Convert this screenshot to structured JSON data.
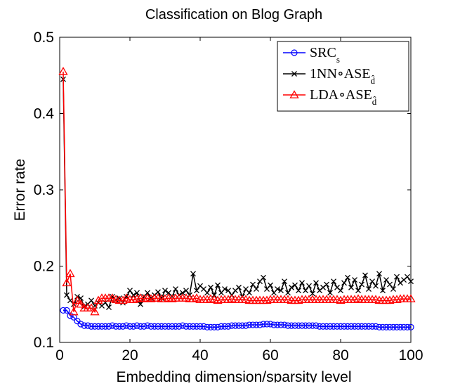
{
  "chart_data": {
    "type": "line",
    "title": "Classification on Blog Graph",
    "xlabel": "Embedding dimension/sparsity level",
    "ylabel": "Error rate",
    "xlim": [
      0,
      100
    ],
    "ylim": [
      0.1,
      0.5
    ],
    "xticks": [
      0,
      20,
      40,
      60,
      80,
      100
    ],
    "xtick_labels": [
      "0",
      "20",
      "40",
      "60",
      "80",
      "100"
    ],
    "yticks": [
      0.1,
      0.2,
      0.3,
      0.4,
      0.5
    ],
    "ytick_labels": [
      "0.1",
      "0.2",
      "0.3",
      "0.4",
      "0.5"
    ],
    "grid": false,
    "legend_position": "top-right",
    "series": [
      {
        "name": "SRC",
        "name_subscript": "s",
        "color": "#0000ff",
        "marker": "circle",
        "x": [
          1,
          2,
          3,
          4,
          5,
          6,
          7,
          8,
          9,
          10,
          11,
          12,
          13,
          14,
          15,
          16,
          17,
          18,
          19,
          20,
          21,
          22,
          23,
          24,
          25,
          26,
          27,
          28,
          29,
          30,
          31,
          32,
          33,
          34,
          35,
          36,
          37,
          38,
          39,
          40,
          41,
          42,
          43,
          44,
          45,
          46,
          47,
          48,
          49,
          50,
          51,
          52,
          53,
          54,
          55,
          56,
          57,
          58,
          59,
          60,
          61,
          62,
          63,
          64,
          65,
          66,
          67,
          68,
          69,
          70,
          71,
          72,
          73,
          74,
          75,
          76,
          77,
          78,
          79,
          80,
          81,
          82,
          83,
          84,
          85,
          86,
          87,
          88,
          89,
          90,
          91,
          92,
          93,
          94,
          95,
          96,
          97,
          98,
          99,
          100
        ],
        "y": [
          0.142,
          0.142,
          0.135,
          0.133,
          0.128,
          0.124,
          0.122,
          0.122,
          0.121,
          0.121,
          0.121,
          0.121,
          0.121,
          0.121,
          0.122,
          0.121,
          0.121,
          0.121,
          0.122,
          0.121,
          0.121,
          0.122,
          0.121,
          0.121,
          0.122,
          0.121,
          0.121,
          0.121,
          0.121,
          0.121,
          0.121,
          0.121,
          0.121,
          0.121,
          0.122,
          0.121,
          0.121,
          0.121,
          0.121,
          0.121,
          0.121,
          0.12,
          0.12,
          0.12,
          0.12,
          0.121,
          0.121,
          0.121,
          0.122,
          0.122,
          0.122,
          0.122,
          0.122,
          0.123,
          0.123,
          0.123,
          0.123,
          0.124,
          0.124,
          0.124,
          0.123,
          0.123,
          0.123,
          0.123,
          0.122,
          0.122,
          0.122,
          0.122,
          0.122,
          0.122,
          0.122,
          0.122,
          0.122,
          0.121,
          0.121,
          0.121,
          0.121,
          0.121,
          0.121,
          0.121,
          0.121,
          0.121,
          0.121,
          0.121,
          0.121,
          0.121,
          0.121,
          0.121,
          0.121,
          0.121,
          0.12,
          0.12,
          0.12,
          0.12,
          0.12,
          0.12,
          0.12,
          0.12,
          0.12,
          0.12
        ]
      },
      {
        "name": "1NN∘ASE",
        "name_subscript": "d̂",
        "color": "#000000",
        "marker": "x",
        "x": [
          1,
          2,
          3,
          4,
          5,
          6,
          7,
          8,
          9,
          10,
          11,
          12,
          13,
          14,
          15,
          16,
          17,
          18,
          19,
          20,
          21,
          22,
          23,
          24,
          25,
          26,
          27,
          28,
          29,
          30,
          31,
          32,
          33,
          34,
          35,
          36,
          37,
          38,
          39,
          40,
          41,
          42,
          43,
          44,
          45,
          46,
          47,
          48,
          49,
          50,
          51,
          52,
          53,
          54,
          55,
          56,
          57,
          58,
          59,
          60,
          61,
          62,
          63,
          64,
          65,
          66,
          67,
          68,
          69,
          70,
          71,
          72,
          73,
          74,
          75,
          76,
          77,
          78,
          79,
          80,
          81,
          82,
          83,
          84,
          85,
          86,
          87,
          88,
          89,
          90,
          91,
          92,
          93,
          94,
          95,
          96,
          97,
          98,
          99,
          100
        ],
        "y": [
          0.445,
          0.162,
          0.155,
          0.15,
          0.16,
          0.158,
          0.147,
          0.15,
          0.155,
          0.148,
          0.152,
          0.148,
          0.152,
          0.146,
          0.16,
          0.156,
          0.158,
          0.152,
          0.16,
          0.168,
          0.162,
          0.165,
          0.15,
          0.16,
          0.165,
          0.158,
          0.162,
          0.166,
          0.158,
          0.168,
          0.165,
          0.16,
          0.17,
          0.162,
          0.165,
          0.168,
          0.162,
          0.19,
          0.168,
          0.174,
          0.17,
          0.165,
          0.172,
          0.162,
          0.175,
          0.165,
          0.17,
          0.168,
          0.162,
          0.168,
          0.172,
          0.16,
          0.17,
          0.165,
          0.176,
          0.17,
          0.18,
          0.185,
          0.17,
          0.175,
          0.165,
          0.17,
          0.168,
          0.18,
          0.165,
          0.172,
          0.175,
          0.168,
          0.178,
          0.168,
          0.174,
          0.164,
          0.178,
          0.168,
          0.172,
          0.176,
          0.165,
          0.18,
          0.172,
          0.168,
          0.178,
          0.185,
          0.172,
          0.182,
          0.168,
          0.176,
          0.188,
          0.17,
          0.18,
          0.174,
          0.19,
          0.168,
          0.182,
          0.176,
          0.17,
          0.186,
          0.178,
          0.182,
          0.186,
          0.18
        ]
      },
      {
        "name": "LDA∘ASE",
        "name_subscript": "d̂",
        "color": "#ff0000",
        "marker": "triangle",
        "x": [
          1,
          2,
          3,
          4,
          5,
          6,
          7,
          8,
          9,
          10,
          11,
          12,
          13,
          14,
          15,
          16,
          17,
          18,
          19,
          20,
          21,
          22,
          23,
          24,
          25,
          26,
          27,
          28,
          29,
          30,
          31,
          32,
          33,
          34,
          35,
          36,
          37,
          38,
          39,
          40,
          41,
          42,
          43,
          44,
          45,
          46,
          47,
          48,
          49,
          50,
          51,
          52,
          53,
          54,
          55,
          56,
          57,
          58,
          59,
          60,
          61,
          62,
          63,
          64,
          65,
          66,
          67,
          68,
          69,
          70,
          71,
          72,
          73,
          74,
          75,
          76,
          77,
          78,
          79,
          80,
          81,
          82,
          83,
          84,
          85,
          86,
          87,
          88,
          89,
          90,
          91,
          92,
          93,
          94,
          95,
          96,
          97,
          98,
          99,
          100
        ],
        "y": [
          0.455,
          0.178,
          0.19,
          0.14,
          0.155,
          0.15,
          0.145,
          0.145,
          0.145,
          0.14,
          0.155,
          0.158,
          0.158,
          0.158,
          0.158,
          0.156,
          0.155,
          0.155,
          0.158,
          0.156,
          0.156,
          0.157,
          0.158,
          0.157,
          0.158,
          0.157,
          0.158,
          0.158,
          0.157,
          0.157,
          0.158,
          0.157,
          0.158,
          0.158,
          0.158,
          0.158,
          0.157,
          0.157,
          0.158,
          0.156,
          0.156,
          0.156,
          0.157,
          0.156,
          0.155,
          0.156,
          0.156,
          0.156,
          0.157,
          0.156,
          0.156,
          0.156,
          0.156,
          0.155,
          0.155,
          0.155,
          0.155,
          0.155,
          0.155,
          0.156,
          0.156,
          0.156,
          0.156,
          0.156,
          0.156,
          0.155,
          0.155,
          0.155,
          0.156,
          0.156,
          0.156,
          0.156,
          0.156,
          0.156,
          0.156,
          0.156,
          0.156,
          0.156,
          0.156,
          0.155,
          0.156,
          0.156,
          0.156,
          0.156,
          0.157,
          0.156,
          0.156,
          0.156,
          0.156,
          0.156,
          0.155,
          0.155,
          0.155,
          0.155,
          0.156,
          0.156,
          0.157,
          0.157,
          0.157,
          0.157
        ]
      }
    ]
  }
}
